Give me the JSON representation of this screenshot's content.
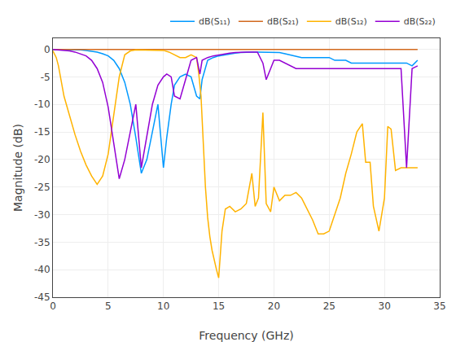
{
  "chart_data": {
    "type": "line",
    "xlabel": "Frequency (GHz)",
    "ylabel": "Magnitude (dB)",
    "xlim": [
      0,
      35
    ],
    "ylim": [
      -45,
      2
    ],
    "xticks": [
      0,
      5,
      10,
      15,
      20,
      25,
      30,
      35
    ],
    "yticks": [
      0,
      -5,
      -10,
      -15,
      -20,
      -25,
      -30,
      -35,
      -40,
      -45
    ],
    "grid": true,
    "legend": "upper right",
    "series": [
      {
        "name": "dB(S₁₁)",
        "color": "#0099FF",
        "x": [
          0.0,
          0.5,
          1.0,
          1.5,
          2.0,
          2.5,
          3.0,
          3.5,
          4.0,
          4.5,
          5.0,
          5.5,
          6.0,
          6.5,
          7.0,
          7.5,
          8.0,
          8.5,
          9.0,
          9.5,
          10.0,
          10.3,
          10.7,
          11.0,
          11.5,
          12.0,
          12.5,
          13.0,
          13.3,
          13.5,
          14.0,
          14.5,
          15.0,
          15.5,
          16.0,
          16.5,
          17.0,
          17.5,
          18.0,
          18.5,
          19.0,
          19.5,
          20.0,
          20.5,
          21.0,
          21.5,
          22.0,
          22.5,
          23.0,
          23.5,
          24.0,
          24.5,
          25.0,
          25.5,
          26.0,
          26.5,
          27.0,
          27.5,
          28.0,
          28.5,
          29.0,
          29.5,
          30.0,
          30.5,
          31.0,
          31.5,
          32.0,
          32.5,
          33.0
        ],
        "values": [
          -0.05,
          -0.05,
          -0.05,
          -0.05,
          -0.05,
          -0.1,
          -0.2,
          -0.3,
          -0.5,
          -0.8,
          -1.2,
          -2.0,
          -3.5,
          -6.0,
          -10.0,
          -16.0,
          -22.5,
          -20.0,
          -15.0,
          -10.0,
          -21.5,
          -16.0,
          -10.0,
          -6.5,
          -5.0,
          -4.5,
          -5.0,
          -8.5,
          -9.0,
          -5.5,
          -2.0,
          -1.5,
          -1.2,
          -1.0,
          -0.8,
          -0.7,
          -0.6,
          -0.5,
          -0.5,
          -0.5,
          -0.5,
          -0.5,
          -0.5,
          -0.6,
          -0.8,
          -1.0,
          -1.2,
          -1.5,
          -1.5,
          -1.5,
          -1.5,
          -1.5,
          -1.5,
          -2.0,
          -2.0,
          -2.0,
          -2.5,
          -2.5,
          -2.5,
          -2.5,
          -2.5,
          -2.5,
          -2.5,
          -2.5,
          -2.5,
          -2.5,
          -2.5,
          -3.0,
          -2.0
        ]
      },
      {
        "name": "dB(S₂₁)",
        "color": "#D2691E",
        "x": [
          0.0,
          0.5,
          1.0,
          1.5,
          2.0,
          2.5,
          3.0,
          3.5,
          4.0,
          4.5,
          5.0,
          5.5,
          6.0,
          6.5,
          7.0,
          7.5,
          8.0,
          8.5,
          9.0,
          9.5,
          10.0,
          10.5,
          11.0,
          11.5,
          12.0,
          12.5,
          13.0,
          13.5,
          14.0,
          14.5,
          15.0,
          15.5,
          16.0,
          16.5,
          17.0,
          17.5,
          18.0,
          18.5,
          19.0,
          19.5,
          20.0,
          20.5,
          21.0,
          21.5,
          22.0,
          22.5,
          23.0,
          23.5,
          24.0,
          24.5,
          25.0,
          25.5,
          26.0,
          26.5,
          27.0,
          27.5,
          28.0,
          28.5,
          29.0,
          29.5,
          30.0,
          30.5,
          31.0,
          31.5,
          32.0,
          32.5,
          33.0
        ],
        "values": [
          -0.05,
          -0.05,
          -0.05,
          -0.05,
          -0.05,
          -0.05,
          -0.05,
          -0.05,
          -0.05,
          -0.05,
          -0.05,
          -0.05,
          -0.05,
          -0.05,
          -0.05,
          -0.05,
          -0.05,
          -0.05,
          -0.05,
          -0.05,
          -0.05,
          -0.05,
          -0.05,
          -0.05,
          -0.05,
          -0.05,
          -0.05,
          -0.05,
          -0.05,
          -0.05,
          -0.05,
          -0.05,
          -0.05,
          -0.05,
          -0.05,
          -0.05,
          -0.05,
          -0.05,
          -0.05,
          -0.05,
          -0.05,
          -0.05,
          -0.05,
          -0.05,
          -0.05,
          -0.05,
          -0.05,
          -0.05,
          -0.05,
          -0.05,
          -0.05,
          -0.05,
          -0.05,
          -0.05,
          -0.05,
          -0.05,
          -0.05,
          -0.05,
          -0.05,
          -0.05,
          -0.05,
          -0.05,
          -0.05,
          -0.05,
          -0.05,
          -0.05,
          -0.05
        ]
      },
      {
        "name": "dB(S₁₂)",
        "color": "#FFB300",
        "x": [
          0.0,
          0.3,
          0.5,
          0.8,
          1.0,
          1.5,
          2.0,
          2.5,
          3.0,
          3.5,
          4.0,
          4.5,
          5.0,
          5.5,
          6.0,
          6.5,
          7.0,
          7.5,
          8.0,
          8.5,
          9.0,
          9.5,
          10.0,
          10.5,
          11.0,
          11.5,
          12.0,
          12.5,
          13.0,
          13.2,
          13.4,
          13.6,
          13.8,
          14.0,
          14.2,
          14.4,
          14.6,
          14.8,
          15.0,
          15.3,
          15.6,
          16.0,
          16.5,
          17.0,
          17.5,
          18.0,
          18.3,
          18.6,
          19.0,
          19.3,
          19.7,
          20.0,
          20.5,
          21.0,
          21.5,
          22.0,
          22.5,
          23.0,
          23.5,
          24.0,
          24.5,
          25.0,
          25.5,
          26.0,
          26.5,
          27.0,
          27.5,
          28.0,
          28.3,
          28.7,
          29.0,
          29.5,
          30.0,
          30.3,
          30.6,
          31.0,
          31.5,
          32.0,
          32.5,
          33.0
        ],
        "values": [
          -0.3,
          -1.5,
          -3.0,
          -6.0,
          -8.5,
          -12.0,
          -15.5,
          -18.5,
          -21.0,
          -23.0,
          -24.5,
          -23.0,
          -19.0,
          -12.0,
          -5.0,
          -1.0,
          -0.3,
          -0.1,
          -0.1,
          -0.1,
          -0.1,
          -0.1,
          -0.2,
          -0.5,
          -1.0,
          -1.5,
          -1.5,
          -1.0,
          -1.5,
          -4.5,
          -8.5,
          -18.0,
          -25.0,
          -30.5,
          -34.0,
          -36.5,
          -38.5,
          -40.0,
          -41.5,
          -33.0,
          -29.0,
          -28.5,
          -29.5,
          -29.0,
          -28.0,
          -22.5,
          -28.5,
          -27.0,
          -11.5,
          -28.0,
          -29.5,
          -25.0,
          -27.5,
          -26.5,
          -26.5,
          -26.0,
          -27.0,
          -29.0,
          -31.0,
          -33.5,
          -33.5,
          -33.0,
          -30.0,
          -27.0,
          -22.5,
          -19.0,
          -15.0,
          -13.5,
          -20.5,
          -20.5,
          -28.5,
          -33.0,
          -27.0,
          -14.0,
          -14.5,
          -22.0,
          -21.5,
          -21.5,
          -21.5,
          -21.5
        ]
      },
      {
        "name": "dB(S₂₂)",
        "color": "#9400D3",
        "x": [
          0.0,
          0.5,
          1.0,
          1.5,
          2.0,
          2.5,
          3.0,
          3.5,
          4.0,
          4.5,
          5.0,
          5.5,
          6.0,
          6.5,
          7.0,
          7.5,
          8.0,
          8.5,
          9.0,
          9.5,
          10.0,
          10.3,
          10.7,
          11.0,
          11.5,
          12.0,
          12.5,
          13.0,
          13.3,
          13.5,
          14.0,
          14.5,
          15.0,
          15.5,
          16.0,
          16.5,
          17.0,
          17.5,
          18.0,
          18.5,
          19.0,
          19.3,
          19.7,
          20.0,
          20.5,
          21.0,
          21.5,
          22.0,
          22.5,
          23.0,
          23.5,
          24.0,
          24.5,
          25.0,
          25.5,
          26.0,
          26.5,
          27.0,
          27.5,
          28.0,
          28.5,
          29.0,
          29.5,
          30.0,
          30.5,
          31.0,
          31.5,
          32.0,
          32.5,
          33.0
        ],
        "values": [
          -0.05,
          -0.1,
          -0.2,
          -0.3,
          -0.5,
          -0.8,
          -1.2,
          -2.0,
          -3.5,
          -6.0,
          -10.5,
          -17.0,
          -23.5,
          -20.0,
          -15.0,
          -10.0,
          -21.5,
          -16.0,
          -10.0,
          -6.5,
          -5.0,
          -4.5,
          -5.0,
          -8.5,
          -9.0,
          -5.5,
          -2.0,
          -1.5,
          -4.5,
          -2.0,
          -1.5,
          -1.2,
          -1.0,
          -0.8,
          -0.7,
          -0.6,
          -0.5,
          -0.5,
          -0.5,
          -0.5,
          -2.5,
          -5.5,
          -3.5,
          -2.0,
          -2.0,
          -2.5,
          -3.0,
          -3.5,
          -3.5,
          -3.5,
          -3.5,
          -3.5,
          -3.5,
          -3.5,
          -3.5,
          -3.5,
          -3.5,
          -3.5,
          -3.5,
          -3.5,
          -3.5,
          -3.5,
          -3.5,
          -3.5,
          -3.5,
          -3.5,
          -3.5,
          -21.5,
          -3.5,
          -3.0
        ]
      }
    ]
  }
}
